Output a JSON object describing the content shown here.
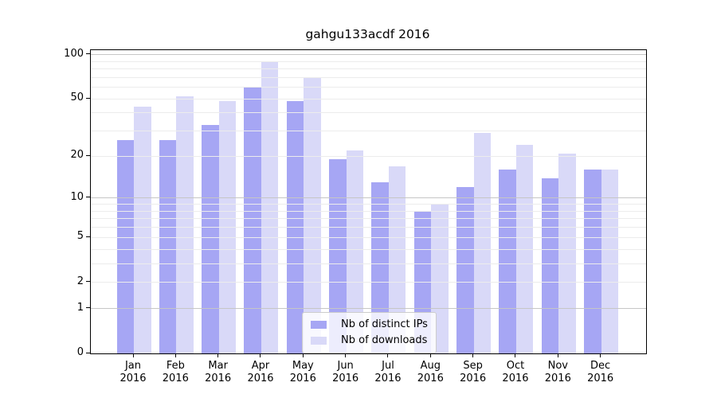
{
  "chart_data": {
    "type": "bar",
    "title": "gahgu133acdf 2016",
    "categories": [
      "Jan",
      "Feb",
      "Mar",
      "Apr",
      "May",
      "Jun",
      "Jul",
      "Aug",
      "Sep",
      "Oct",
      "Nov",
      "Dec"
    ],
    "category_year": "2016",
    "series": [
      {
        "name": "Nb of distinct IPs",
        "color": "#a6a6f4",
        "values": [
          26,
          26,
          33,
          60,
          48,
          19,
          13,
          8,
          12,
          16,
          14,
          16
        ]
      },
      {
        "name": "Nb of downloads",
        "color": "#d9d9f8",
        "values": [
          44,
          52,
          48,
          89,
          70,
          22,
          17,
          9,
          29,
          24,
          21,
          16
        ]
      }
    ],
    "y_scale": "log1p",
    "y_ticks": [
      0,
      1,
      2,
      5,
      10,
      20,
      50,
      100
    ],
    "y_minor_gridlines": [
      2,
      3,
      4,
      5,
      6,
      7,
      8,
      9,
      20,
      30,
      40,
      50,
      60,
      70,
      80,
      90
    ],
    "y_major_gridlines": [
      1,
      10,
      100
    ],
    "ylim": [
      0,
      107.1
    ],
    "grid": "on",
    "legend_position": "lower-center"
  }
}
